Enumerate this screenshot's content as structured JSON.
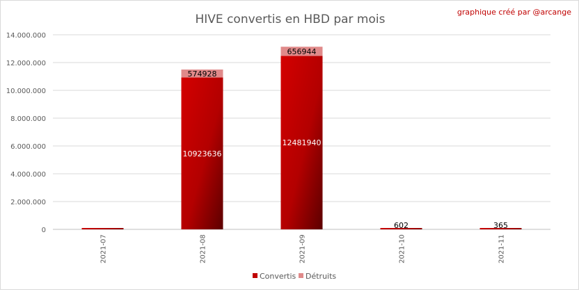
{
  "credit": "graphique créé par @arcange",
  "chart_data": {
    "type": "bar",
    "stacked": true,
    "title": "HIVE convertis en HBD par mois",
    "xlabel": "",
    "ylabel": "",
    "categories": [
      "2021-07",
      "2021-08",
      "2021-09",
      "2021-10",
      "2021-11"
    ],
    "series": [
      {
        "name": "Convertis",
        "color": "#c00000",
        "values": [
          60000,
          10923636,
          12481940,
          602,
          365
        ],
        "labels": [
          "",
          "10923636",
          "12481940",
          "602",
          "365"
        ]
      },
      {
        "name": "Détruits",
        "color": "#e08a8a",
        "values": [
          0,
          574928,
          656944,
          0,
          0
        ],
        "labels": [
          "",
          "574928",
          "656944",
          "",
          ""
        ]
      }
    ],
    "ylim": [
      0,
      14000000
    ],
    "yticks": [
      "0",
      "2.000.000",
      "4.000.000",
      "6.000.000",
      "8.000.000",
      "10.000.000",
      "12.000.000",
      "14.000.000"
    ],
    "ytick_values": [
      0,
      2000000,
      4000000,
      6000000,
      8000000,
      10000000,
      12000000,
      14000000
    ],
    "grid": true,
    "legend": "bottom"
  }
}
